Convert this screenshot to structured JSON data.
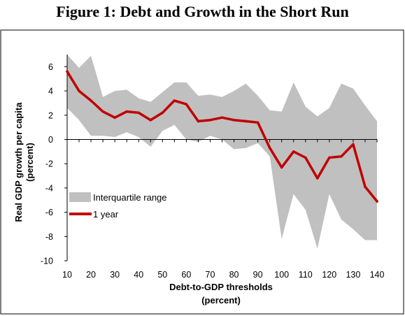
{
  "chart_data": {
    "type": "area",
    "title": "Figure 1: Debt and Growth in the Short Run",
    "xlabel_line1": "Debt-to-GDP thresholds",
    "xlabel_line2": "(percent)",
    "ylabel_line1": "Real GDP growth per capita",
    "ylabel_line2": "(percent)",
    "x": [
      10,
      15,
      20,
      25,
      30,
      35,
      40,
      45,
      50,
      55,
      60,
      65,
      70,
      75,
      80,
      85,
      90,
      95,
      100,
      105,
      110,
      115,
      120,
      125,
      130,
      135,
      140
    ],
    "xticks": [
      10,
      20,
      30,
      40,
      50,
      60,
      70,
      80,
      90,
      100,
      110,
      120,
      130,
      140
    ],
    "yticks": [
      6,
      4,
      2,
      0,
      -2,
      -4,
      -6,
      -8,
      -10
    ],
    "xlim": [
      10,
      140
    ],
    "ylim": [
      -10,
      7
    ],
    "grid": false,
    "legend_position": "lower-left",
    "series": [
      {
        "name": "Interquartile range",
        "kind": "band",
        "color": "#c0c0c0",
        "upper": [
          7.0,
          5.9,
          6.9,
          3.5,
          4.0,
          4.1,
          3.4,
          3.1,
          3.9,
          4.7,
          4.7,
          3.6,
          3.7,
          3.5,
          4.0,
          4.6,
          3.6,
          2.4,
          2.3,
          4.7,
          2.7,
          1.9,
          2.6,
          4.6,
          4.2,
          2.8,
          1.5
        ],
        "lower": [
          2.6,
          1.6,
          0.3,
          0.3,
          0.2,
          0.6,
          0.2,
          -0.6,
          0.7,
          1.2,
          0.0,
          -0.2,
          0.3,
          0.0,
          -0.8,
          -0.7,
          -0.3,
          -1.4,
          -8.2,
          -4.5,
          -5.8,
          -9.0,
          -4.5,
          -6.6,
          -7.4,
          -8.3,
          -8.3
        ]
      },
      {
        "name": "1 year",
        "kind": "line",
        "color": "#c00000",
        "values": [
          5.6,
          4.0,
          3.2,
          2.3,
          1.8,
          2.3,
          2.2,
          1.6,
          2.2,
          3.2,
          2.9,
          1.5,
          1.6,
          1.8,
          1.6,
          1.5,
          1.4,
          -0.7,
          -2.3,
          -1.0,
          -1.5,
          -3.2,
          -1.5,
          -1.4,
          -0.4,
          -3.9,
          -5.1
        ]
      }
    ]
  }
}
